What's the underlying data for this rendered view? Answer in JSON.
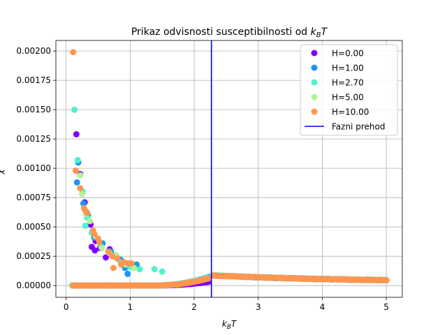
{
  "chart_data": {
    "type": "scatter",
    "title_main": "Prikaz odvisnosti susceptibilnosti od ",
    "title_math": "k",
    "title_sub": "B",
    "title_tail": "T",
    "xlabel_main": "k",
    "xlabel_sub": "B",
    "xlabel_tail": "T",
    "ylabel": "χ",
    "xlim": [
      -0.16,
      5.25
    ],
    "ylim": [
      -0.0001,
      0.00209
    ],
    "xticks": [
      0,
      1,
      2,
      3,
      4,
      5
    ],
    "xtick_labels": [
      "0",
      "1",
      "2",
      "3",
      "4",
      "5"
    ],
    "yticks": [
      0,
      0.00025,
      0.0005,
      0.00075,
      0.001,
      0.00125,
      0.0015,
      0.00175,
      0.002
    ],
    "ytick_labels": [
      "0.00000",
      "0.00025",
      "0.00050",
      "0.00075",
      "0.00100",
      "0.00125",
      "0.00150",
      "0.00175",
      "0.00200"
    ],
    "grid": true,
    "legend_position": "top-right",
    "series": [
      {
        "name": "H=0.00",
        "color": "#8000ff",
        "points": [
          [
            0.16,
            0.00129
          ],
          [
            0.22,
            0.00095
          ],
          [
            0.29,
            0.00071
          ],
          [
            0.38,
            0.00052
          ],
          [
            0.46,
            0.00038
          ],
          [
            0.53,
            0.00032
          ],
          [
            0.62,
            0.00024
          ],
          [
            0.68,
            0.00031
          ],
          [
            0.78,
            0.00025
          ],
          [
            0.9,
            0.0002
          ],
          [
            0.4,
            0.00033
          ],
          [
            0.45,
            0.0003
          ]
        ]
      },
      {
        "name": "H=1.00",
        "color": "#1996f3",
        "points": [
          [
            0.17,
            0.00088
          ],
          [
            0.19,
            0.00105
          ],
          [
            0.27,
            0.0007
          ],
          [
            0.34,
            0.0006
          ],
          [
            0.44,
            0.00041
          ],
          [
            0.57,
            0.00036
          ],
          [
            0.7,
            0.00029
          ],
          [
            0.85,
            0.00022
          ],
          [
            0.96,
            0.0001
          ],
          [
            1.1,
            0.00018
          ],
          [
            0.92,
            0.00015
          ],
          [
            0.79,
            0.00024
          ]
        ]
      },
      {
        "name": "H=2.70",
        "color": "#4df3ce",
        "points": [
          [
            0.13,
            0.0015
          ],
          [
            0.18,
            0.00107
          ],
          [
            0.26,
            0.0008
          ],
          [
            0.3,
            0.00051
          ],
          [
            0.33,
            0.00058
          ],
          [
            0.4,
            0.00045
          ],
          [
            0.55,
            0.00033
          ],
          [
            0.68,
            0.00028
          ],
          [
            0.85,
            0.0002
          ],
          [
            1.0,
            0.00016
          ],
          [
            1.15,
            0.00014
          ],
          [
            1.38,
            0.00014
          ],
          [
            1.5,
            0.00012
          ]
        ]
      },
      {
        "name": "H=5.00",
        "color": "#b2f396",
        "points": [
          [
            0.22,
            0.00094
          ],
          [
            0.25,
            0.00078
          ],
          [
            0.31,
            0.00061
          ],
          [
            0.37,
            0.00055
          ],
          [
            0.46,
            0.00042
          ],
          [
            0.56,
            0.00032
          ],
          [
            0.67,
            0.00028
          ],
          [
            0.78,
            0.00026
          ],
          [
            0.93,
            0.00018
          ],
          [
            1.06,
            0.00015
          ]
        ]
      },
      {
        "name": "H=10.00",
        "color": "#ff9650",
        "points": [
          [
            0.11,
            0.00199
          ],
          [
            0.15,
            0.00098
          ],
          [
            0.22,
            0.00083
          ],
          [
            0.28,
            0.00066
          ],
          [
            0.3,
            0.00064
          ],
          [
            0.33,
            0.00062
          ],
          [
            0.42,
            0.00047
          ],
          [
            0.44,
            0.00044
          ],
          [
            0.5,
            0.0004
          ],
          [
            0.52,
            0.00037
          ],
          [
            0.66,
            0.00029
          ],
          [
            0.72,
            0.00025
          ],
          [
            0.8,
            0.00023
          ],
          [
            0.86,
            0.00018
          ],
          [
            0.9,
            0.0002
          ],
          [
            0.97,
            0.00019
          ],
          [
            1.02,
            0.00019
          ],
          [
            0.74,
            0.00015
          ]
        ]
      }
    ],
    "phase_transition": {
      "name": "Fazni prehod",
      "x": 2.269,
      "color": "#0000ff"
    }
  }
}
